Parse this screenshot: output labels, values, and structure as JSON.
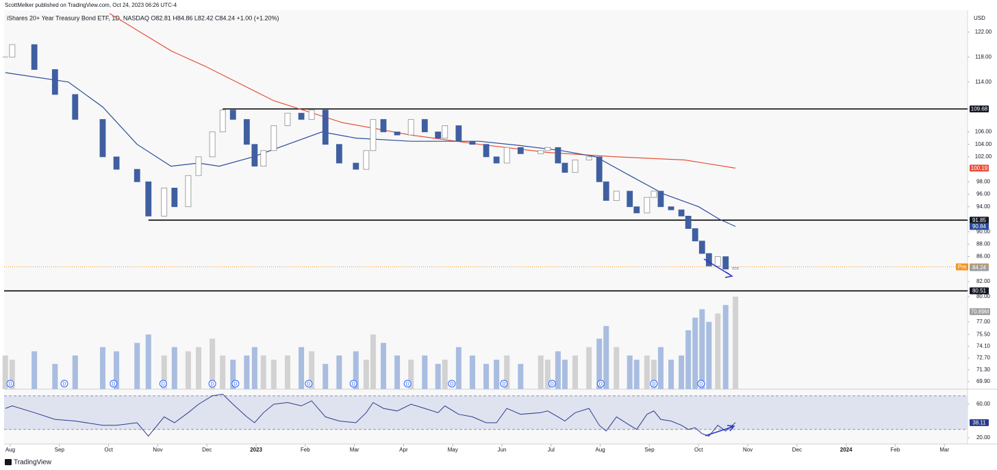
{
  "header": {
    "published": "ScottMelker published on TradingView.com, Oct 24, 2023 06:26 UTC-4",
    "legend": "iShares 20+ Year Treasury Bond ETF, 1D, NASDAQ  O82.81  H84.86  L82.42  C84.24  +1.00 (+1.20%)",
    "currency": "USD"
  },
  "footer": "TradingView",
  "chart_data": {
    "type": "candlestick",
    "xlim": [
      -0.125,
      19.47
    ],
    "xticks": [
      {
        "value": 0,
        "label": "Aug"
      },
      {
        "value": 1,
        "label": "Sep"
      },
      {
        "value": 2,
        "label": "Oct"
      },
      {
        "value": 3,
        "label": "Nov"
      },
      {
        "value": 4,
        "label": "Dec"
      },
      {
        "value": 5,
        "label": "2023"
      },
      {
        "value": 6,
        "label": "Feb"
      },
      {
        "value": 7,
        "label": "Mar"
      },
      {
        "value": 8,
        "label": "Apr"
      },
      {
        "value": 9,
        "label": "May"
      },
      {
        "value": 10,
        "label": "Jun"
      },
      {
        "value": 11,
        "label": "Jul"
      },
      {
        "value": 12,
        "label": "Aug"
      },
      {
        "value": 13,
        "label": "Sep"
      },
      {
        "value": 14,
        "label": "Oct"
      },
      {
        "value": 15,
        "label": "Nov"
      },
      {
        "value": 16,
        "label": "Dec"
      },
      {
        "value": 17,
        "label": "2024"
      },
      {
        "value": 18,
        "label": "Feb"
      },
      {
        "value": 19,
        "label": "Mar"
      }
    ],
    "ylim": [
      80.13,
      125.5
    ],
    "yticks": [
      {
        "value": 122,
        "label": "122.00"
      },
      {
        "value": 118,
        "label": "118.00"
      },
      {
        "value": 114,
        "label": "114.00"
      },
      {
        "value": 106,
        "label": "106.00"
      },
      {
        "value": 104,
        "label": "104.00"
      },
      {
        "value": 102,
        "label": "102.00"
      },
      {
        "value": 98,
        "label": "98.00"
      },
      {
        "value": 96,
        "label": "96.00"
      },
      {
        "value": 94,
        "label": "94.00"
      },
      {
        "value": 90,
        "label": "90.00"
      },
      {
        "value": 88,
        "label": "88.00"
      },
      {
        "value": 86,
        "label": "86.00"
      },
      {
        "value": 82,
        "label": "82.00"
      }
    ],
    "up_color": "#c8c8c8",
    "down_color": "#3f5fa0",
    "x": [
      -0.1,
      0.04,
      0.49,
      0.91,
      1.32,
      1.88,
      2.16,
      2.58,
      2.81,
      3.13,
      3.34,
      3.62,
      3.83,
      4.11,
      4.32,
      4.53,
      4.81,
      4.97,
      5.15,
      5.36,
      5.64,
      5.92,
      6.13,
      6.41,
      6.69,
      7.03,
      7.24,
      7.38,
      7.59,
      7.87,
      8.15,
      8.43,
      8.7,
      8.84,
      9.12,
      9.4,
      9.68,
      9.89,
      10.1,
      10.38,
      10.79,
      10.93,
      11.14,
      11.28,
      11.49,
      11.77,
      11.98,
      12.12,
      12.33,
      12.6,
      12.74,
      12.95,
      13.09,
      13.23,
      13.44,
      13.65,
      13.79,
      13.93,
      14.07,
      14.21,
      14.39,
      14.55,
      14.75
    ],
    "close": [
      118,
      120,
      116,
      112,
      108,
      102,
      100,
      98,
      92.5,
      97,
      94,
      99,
      102,
      106,
      109.5,
      108,
      104,
      100.5,
      103,
      107,
      109,
      108,
      109.5,
      104,
      101,
      100,
      103,
      108,
      106,
      105.5,
      108,
      106,
      105,
      107,
      104.5,
      104,
      102,
      101,
      103.5,
      102.5,
      103,
      103.5,
      101,
      99.5,
      101.5,
      102,
      98,
      95,
      96.5,
      94,
      93,
      95.5,
      96.5,
      94,
      93.5,
      92.5,
      90.5,
      88.5,
      86.5,
      84.5,
      86,
      84,
      84.24
    ],
    "ma50": {
      "color": "#2a4b9b",
      "x": [
        -0.1,
        1.18,
        1.88,
        2.58,
        3.27,
        3.83,
        4.25,
        4.94,
        5.64,
        6.34,
        7.03,
        8.15,
        9.54,
        10.38,
        11.21,
        11.91,
        12.6,
        13.3,
        14.0,
        14.42,
        14.75
      ],
      "values": [
        115.5,
        114,
        110,
        104,
        100.5,
        101,
        100.5,
        102,
        104,
        106,
        105,
        104.5,
        104.5,
        103.8,
        103,
        102,
        99,
        96,
        94,
        92,
        90.84
      ]
    },
    "ma200": {
      "color": "#e8503a",
      "x": [
        2.02,
        3.27,
        3.97,
        5.36,
        6.75,
        8.15,
        9.54,
        10.93,
        12.33,
        13.72,
        14.75
      ],
      "values": [
        125,
        119,
        116.5,
        111,
        107.5,
        105.5,
        104,
        102.7,
        102,
        101.5,
        100.19
      ]
    },
    "levels": [
      {
        "value": 109.68,
        "from": 4.32
      },
      {
        "value": 91.85,
        "from": 2.81
      },
      {
        "value": 80.51,
        "from": -0.125
      }
    ],
    "price_labels": [
      {
        "value": 109.68,
        "color": "#131722"
      },
      {
        "value": 100.19,
        "color": "#e8503a"
      },
      {
        "value": 91.85,
        "color": "#131722"
      },
      {
        "value": 90.84,
        "color": "#2a4b9b"
      },
      {
        "value": 84.36,
        "color": "#f7931a",
        "tag": "Pre"
      },
      {
        "value": 84.24,
        "color": "#9e9e9e"
      },
      {
        "value": 80.51,
        "color": "#131722"
      }
    ],
    "premarket": 84.36,
    "volume": [
      73,
      72.5,
      73.5,
      72,
      73,
      74,
      73.5,
      74.5,
      75.5,
      73,
      74,
      73.5,
      74,
      75,
      73,
      72.5,
      73,
      74,
      73,
      72.5,
      73,
      74,
      73.5,
      72,
      73,
      73.5,
      72.5,
      75.5,
      74.5,
      73,
      72.5,
      73,
      72,
      72.5,
      74,
      73,
      72,
      72.5,
      73,
      72,
      73,
      72.5,
      73.5,
      72.5,
      73,
      74,
      75,
      76.5,
      74,
      73,
      72.5,
      73,
      72.5,
      74,
      72.5,
      73,
      76,
      77.5,
      78.5,
      77,
      78,
      79,
      80
    ],
    "vol_ylim": [
      69.0,
      80.4
    ],
    "vol_ticks": [
      {
        "value": 80,
        "label": "80.00"
      },
      {
        "value": 77,
        "label": "77.00"
      },
      {
        "value": 75.5,
        "label": "75.50"
      },
      {
        "value": 74.1,
        "label": "74.10"
      },
      {
        "value": 72.7,
        "label": "72.70"
      },
      {
        "value": 71.3,
        "label": "71.30"
      },
      {
        "value": 69.9,
        "label": "69.90"
      }
    ],
    "vol_label": {
      "value": 70.89,
      "label": "70.89M"
    },
    "dividends": {
      "label": "D",
      "x": [
        0,
        1.1,
        2.1,
        3.11,
        4.11,
        4.58,
        6.07,
        6.98,
        8.08,
        8.98,
        10.04,
        11.02,
        12.01,
        13.09,
        14.05
      ]
    },
    "rsi": {
      "color": "#2a3a8a",
      "values": [
        55,
        58,
        50,
        42,
        40,
        35,
        35,
        38,
        22,
        45,
        38,
        50,
        60,
        70,
        72,
        60,
        45,
        38,
        50,
        60,
        62,
        58,
        64,
        45,
        40,
        38,
        50,
        62,
        55,
        52,
        60,
        55,
        50,
        58,
        48,
        45,
        38,
        38,
        55,
        48,
        50,
        52,
        45,
        40,
        50,
        55,
        35,
        28,
        45,
        35,
        30,
        48,
        52,
        42,
        40,
        35,
        30,
        32,
        25,
        22,
        35,
        28,
        38.11
      ]
    },
    "rsi_ylim": [
      12.7,
      76.3
    ],
    "rsi_band": [
      30,
      70
    ],
    "rsi_ticks": [
      {
        "value": 60,
        "label": "60.00"
      },
      {
        "value": 20,
        "label": "20.00"
      }
    ]
  }
}
